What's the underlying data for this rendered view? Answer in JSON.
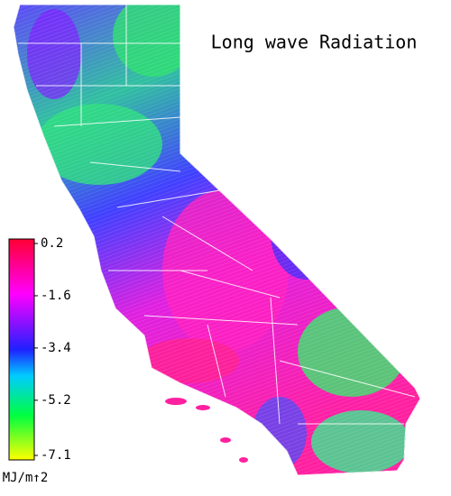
{
  "map": {
    "title": "Long wave Radiation",
    "colorbar": {
      "clim": [
        -7.1,
        0.2
      ],
      "ticks": [
        0.2,
        -1.6,
        -3.4,
        -5.2,
        -7.1
      ],
      "label": "MJ/m↑2"
    }
  }
}
